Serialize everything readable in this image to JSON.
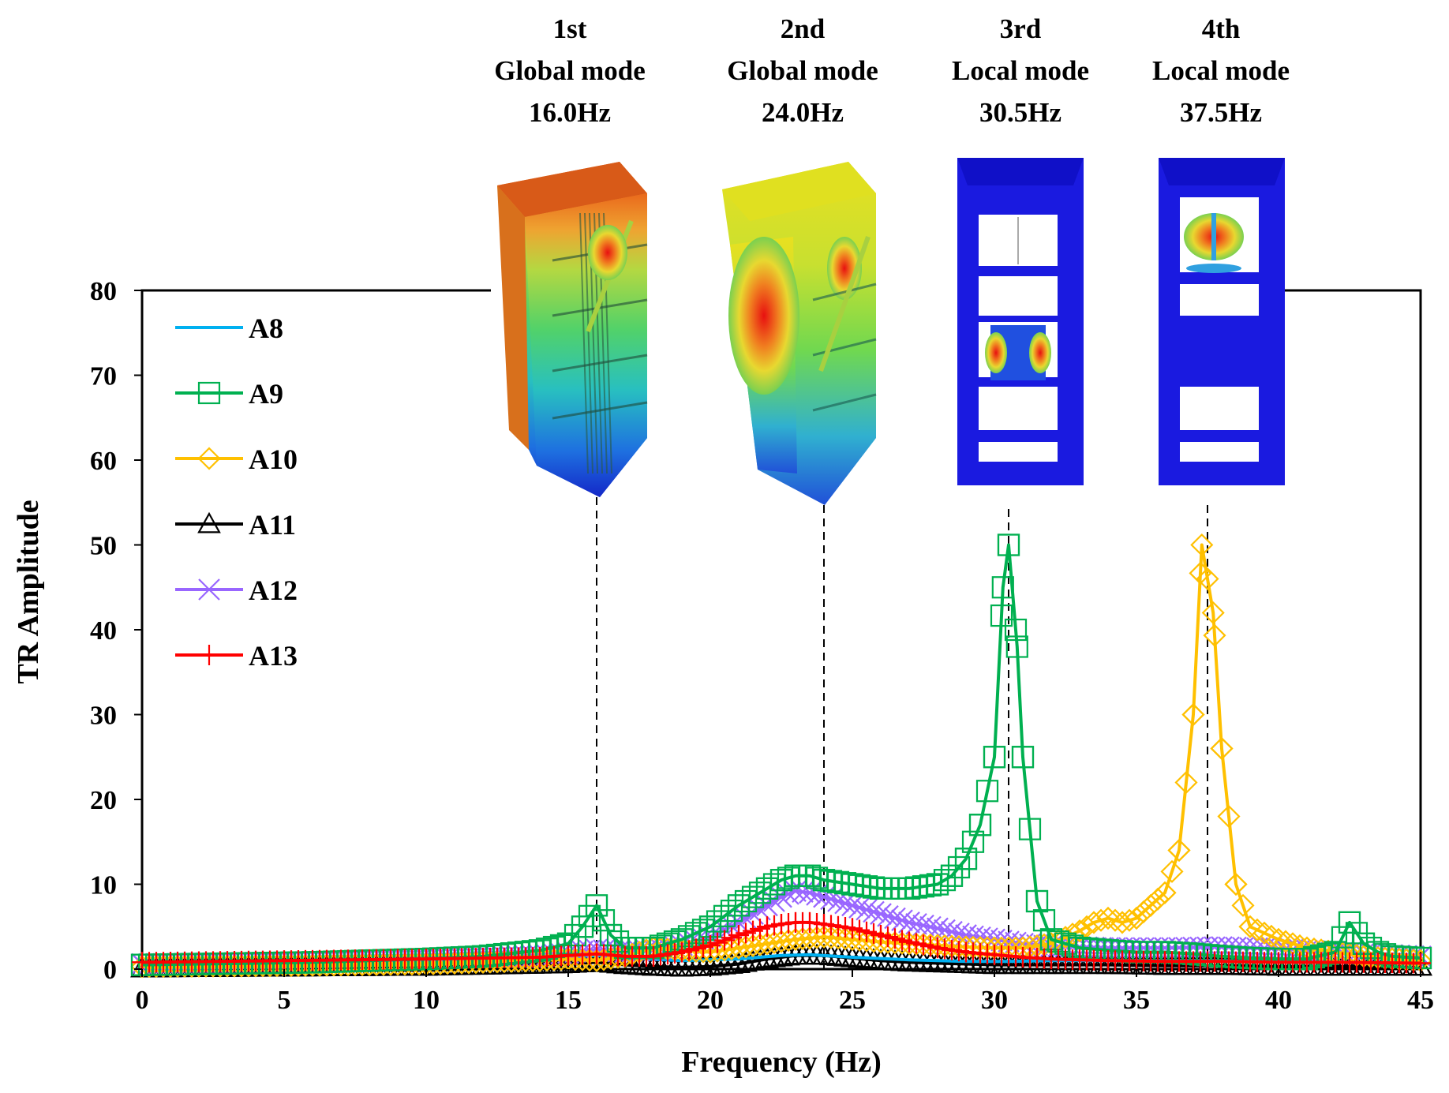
{
  "chart_data": {
    "type": "line",
    "title": "",
    "xlabel": "Frequency (Hz)",
    "ylabel": "TR Amplitude",
    "xlim": [
      0,
      45
    ],
    "ylim": [
      0,
      80
    ],
    "xticks": [
      0,
      5,
      10,
      15,
      20,
      25,
      30,
      35,
      40,
      45
    ],
    "yticks": [
      0,
      10,
      20,
      30,
      40,
      50,
      60,
      70,
      80
    ],
    "grid": false,
    "legend_position": "top-left",
    "series": [
      {
        "name": "A8",
        "color": "#00b0f0",
        "marker": "none",
        "x": [
          0,
          5,
          10,
          14,
          15,
          16,
          17,
          19,
          21,
          22.5,
          23.5,
          25,
          27,
          29,
          30.5,
          32,
          34,
          36,
          37.5,
          40,
          42,
          45
        ],
        "y": [
          0.5,
          0.6,
          0.8,
          1.2,
          1.4,
          1.6,
          1.3,
          1.0,
          1.2,
          1.6,
          1.7,
          1.4,
          1.1,
          0.9,
          0.9,
          1.0,
          1.0,
          1.0,
          1.0,
          0.9,
          0.8,
          0.6
        ]
      },
      {
        "name": "A9",
        "color": "#00b050",
        "marker": "square",
        "x": [
          0,
          2,
          4,
          6,
          8,
          10,
          12,
          14,
          15,
          15.5,
          16,
          16.5,
          17,
          18,
          19,
          20,
          21,
          22,
          22.5,
          23,
          23.5,
          24,
          25,
          26,
          27,
          28,
          28.5,
          29,
          29.5,
          30,
          30.3,
          30.5,
          30.8,
          31,
          31.5,
          32,
          33,
          34,
          35,
          36,
          37,
          38,
          39,
          40,
          41,
          42,
          42.5,
          43,
          43.5,
          44,
          45
        ],
        "y": [
          0.5,
          0.6,
          0.7,
          0.8,
          1.0,
          1.2,
          1.5,
          2.2,
          3,
          5,
          7.5,
          4,
          2.5,
          2.5,
          3.5,
          5,
          7.5,
          9.5,
          10.5,
          11,
          11,
          10.5,
          10,
          9.5,
          9.5,
          10,
          11,
          13,
          17,
          25,
          45,
          50,
          38,
          25,
          8,
          3.5,
          2.5,
          2.2,
          2,
          2,
          1.8,
          1.5,
          1.3,
          1.2,
          1.2,
          2,
          5.5,
          3,
          2,
          1.5,
          1.3
        ]
      },
      {
        "name": "A10",
        "color": "#ffc000",
        "marker": "diamond",
        "x": [
          0,
          5,
          10,
          14,
          15,
          16,
          17,
          18,
          19,
          20,
          21,
          22,
          23,
          24,
          25,
          26,
          27,
          28,
          29,
          30,
          31,
          32,
          33,
          33.5,
          34,
          34.5,
          35,
          35.5,
          36,
          36.5,
          37,
          37.3,
          37.7,
          38,
          38.5,
          39,
          40,
          41,
          42,
          43,
          44,
          45
        ],
        "y": [
          0.3,
          0.4,
          0.6,
          1.0,
          1.2,
          1.0,
          1.5,
          2.5,
          2.2,
          2.0,
          2.5,
          3.0,
          3.5,
          3.8,
          3.5,
          3.2,
          3.0,
          2.8,
          2.6,
          2.5,
          2.5,
          3.0,
          4.5,
          5.5,
          6.0,
          5.5,
          6.0,
          7.5,
          9.0,
          14,
          30,
          50,
          42,
          26,
          10,
          5,
          3.5,
          2.5,
          2.0,
          1.5,
          1.2,
          1.0
        ]
      },
      {
        "name": "A11",
        "color": "#000000",
        "marker": "triangle",
        "x": [
          0,
          5,
          10,
          15,
          16,
          17,
          18,
          19,
          20,
          21,
          22,
          23,
          24,
          25,
          26,
          27,
          28,
          29,
          30,
          31,
          32,
          34,
          36,
          38,
          40,
          42,
          45
        ],
        "y": [
          0.1,
          0.2,
          0.3,
          0.6,
          0.8,
          0.5,
          0.3,
          0.2,
          0.3,
          0.6,
          1.2,
          1.6,
          1.6,
          1.3,
          1.0,
          0.8,
          0.7,
          0.6,
          0.5,
          0.5,
          0.5,
          0.5,
          0.4,
          0.4,
          0.3,
          0.3,
          0.3
        ]
      },
      {
        "name": "A12",
        "color": "#9966ff",
        "marker": "x",
        "x": [
          0,
          5,
          10,
          14,
          15,
          16,
          17,
          18,
          19,
          20,
          21,
          22,
          22.5,
          23,
          23.5,
          24,
          25,
          26,
          27,
          28,
          29,
          30,
          31,
          32,
          34,
          36,
          38,
          40,
          42,
          45
        ],
        "y": [
          0.6,
          0.8,
          1.1,
          1.6,
          1.9,
          2.3,
          2.0,
          2.3,
          2.8,
          3.8,
          5.5,
          7.5,
          8.5,
          9.2,
          9.0,
          8.5,
          7.5,
          6.5,
          5.5,
          4.8,
          4.0,
          3.5,
          3.0,
          2.7,
          2.5,
          2.5,
          2.6,
          2.4,
          2.0,
          1.5
        ]
      },
      {
        "name": "A13",
        "color": "#ff0000",
        "marker": "plus",
        "x": [
          0,
          5,
          10,
          14,
          15,
          16,
          17,
          18,
          19,
          20,
          21,
          22,
          22.5,
          23,
          23.5,
          24,
          25,
          26,
          27,
          28,
          29,
          30,
          31,
          32,
          34,
          36,
          38,
          40,
          42,
          45
        ],
        "y": [
          0.8,
          1.0,
          1.2,
          1.4,
          1.6,
          1.8,
          1.5,
          1.5,
          2.0,
          2.8,
          4.0,
          5.0,
          5.3,
          5.5,
          5.5,
          5.3,
          4.8,
          4.0,
          3.2,
          2.5,
          2.0,
          1.7,
          1.4,
          1.2,
          1.0,
          0.9,
          0.9,
          0.8,
          0.8,
          0.7
        ]
      }
    ],
    "mode_lines": [
      16.0,
      24.0,
      30.5,
      37.5
    ]
  },
  "modes": [
    {
      "line1": "1st",
      "line2": "Global mode",
      "line3": "16.0Hz"
    },
    {
      "line1": "2nd",
      "line2": "Global mode",
      "line3": "24.0Hz"
    },
    {
      "line1": "3rd",
      "line2": "Local mode",
      "line3": "30.5Hz"
    },
    {
      "line1": "4th",
      "line2": "Local mode",
      "line3": "37.5Hz"
    }
  ]
}
